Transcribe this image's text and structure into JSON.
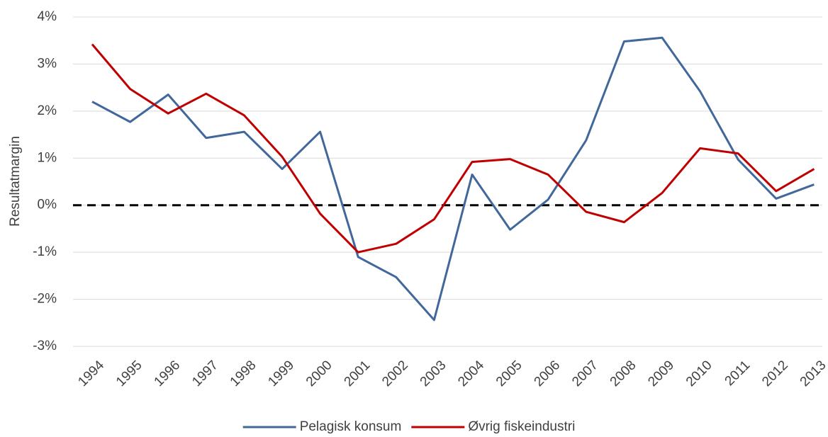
{
  "chart_data": {
    "type": "line",
    "y_label": "Resultatmargin",
    "categories": [
      "1994",
      "1995",
      "1996",
      "1997",
      "1998",
      "1999",
      "2000",
      "2001",
      "2002",
      "2003",
      "2004",
      "2005",
      "2006",
      "2007",
      "2008",
      "2009",
      "2010",
      "2011",
      "2012",
      "2013"
    ],
    "series": [
      {
        "name": "Pelagisk konsum",
        "color": "#41679b",
        "values": [
          2.2,
          1.77,
          2.35,
          1.43,
          1.56,
          0.77,
          1.56,
          -1.1,
          -1.53,
          -2.44,
          0.65,
          -0.52,
          0.12,
          1.38,
          3.48,
          3.56,
          2.42,
          0.97,
          0.14,
          0.44
        ]
      },
      {
        "name": "Øvrig fiskeindustri",
        "color": "#c00000",
        "values": [
          3.42,
          2.47,
          1.95,
          2.37,
          1.91,
          1.03,
          -0.18,
          -1.0,
          -0.82,
          -0.3,
          0.92,
          0.98,
          0.65,
          -0.14,
          -0.36,
          0.26,
          1.21,
          1.1,
          0.3,
          0.77
        ]
      }
    ],
    "ylim": [
      -3,
      4
    ],
    "yticks": [
      {
        "value": -3,
        "label": "-3%"
      },
      {
        "value": -2,
        "label": "-2%"
      },
      {
        "value": -1,
        "label": "-1%"
      },
      {
        "value": 0,
        "label": "0%"
      },
      {
        "value": 1,
        "label": "1%"
      },
      {
        "value": 2,
        "label": "2%"
      },
      {
        "value": 3,
        "label": "3%"
      },
      {
        "value": 4,
        "label": "4%"
      }
    ],
    "grid": true,
    "zero_line": true,
    "legend": "bottom"
  }
}
